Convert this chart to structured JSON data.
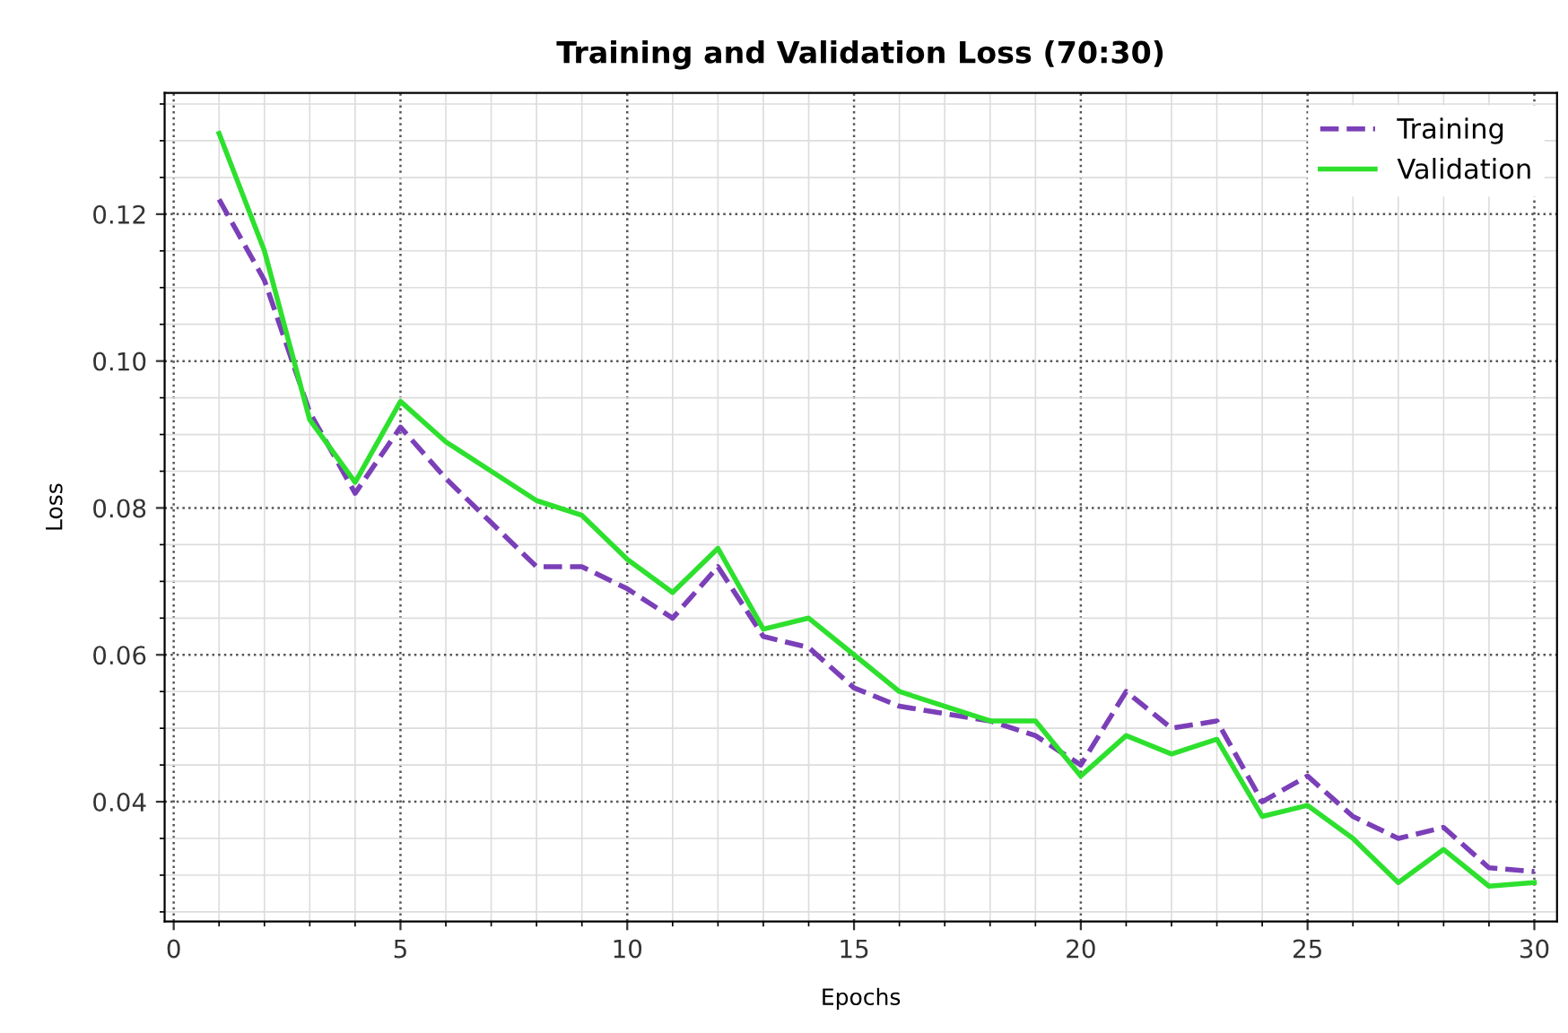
{
  "chart_data": {
    "type": "line",
    "title": "Training and Validation Loss (70:30)",
    "xlabel": "Epochs",
    "ylabel": "Loss",
    "x": [
      1,
      2,
      3,
      4,
      5,
      6,
      7,
      8,
      9,
      10,
      11,
      12,
      13,
      14,
      15,
      16,
      17,
      18,
      19,
      20,
      21,
      22,
      23,
      24,
      25,
      26,
      27,
      28,
      29,
      30
    ],
    "series": [
      {
        "name": "Training",
        "color": "#7b3fb8",
        "line_style": "dashed",
        "values": [
          0.122,
          0.111,
          0.093,
          0.082,
          0.091,
          0.084,
          0.078,
          0.072,
          0.072,
          0.069,
          0.065,
          0.072,
          0.0625,
          0.061,
          0.0555,
          0.053,
          0.052,
          0.051,
          0.049,
          0.045,
          0.055,
          0.05,
          0.051,
          0.04,
          0.0435,
          0.038,
          0.035,
          0.0365,
          0.031,
          0.0305
        ]
      },
      {
        "name": "Validation",
        "color": "#2ee02e",
        "line_style": "solid",
        "values": [
          0.131,
          0.115,
          0.092,
          0.0835,
          0.0945,
          0.089,
          0.085,
          0.081,
          0.079,
          0.073,
          0.0685,
          0.0745,
          0.0635,
          0.065,
          0.06,
          0.055,
          0.053,
          0.051,
          0.051,
          0.0435,
          0.049,
          0.0465,
          0.0485,
          0.038,
          0.0395,
          0.035,
          0.029,
          0.0335,
          0.0285,
          0.029
        ]
      }
    ],
    "xlim": [
      -0.2,
      30.5
    ],
    "ylim": [
      0.0237,
      0.1365
    ],
    "xticks": [
      0,
      5,
      10,
      15,
      20,
      25,
      30
    ],
    "yticks": [
      {
        "value": 0.04,
        "label": "0.04"
      },
      {
        "value": 0.06,
        "label": "0.06"
      },
      {
        "value": 0.08,
        "label": "0.08"
      },
      {
        "value": 0.1,
        "label": "0.10"
      },
      {
        "value": 0.12,
        "label": "0.12"
      }
    ],
    "grid": true,
    "legend": "top right",
    "marker": "none"
  }
}
